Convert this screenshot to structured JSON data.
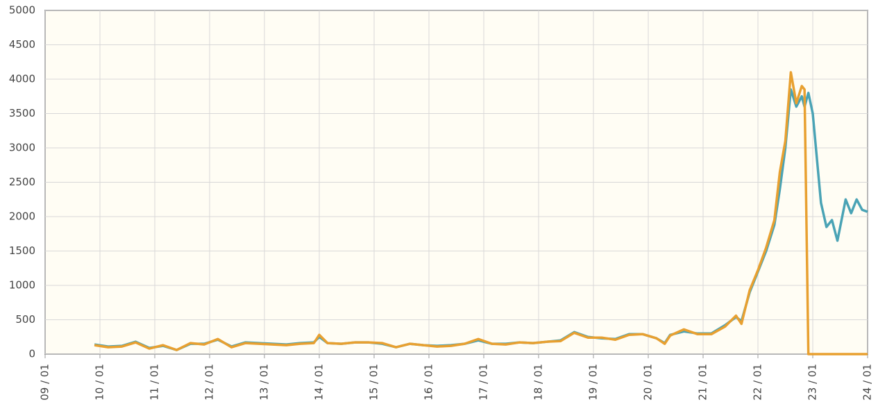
{
  "chart_data": {
    "type": "line",
    "x": [
      2009.9,
      2010.15,
      2010.4,
      2010.65,
      2010.9,
      2011.15,
      2011.4,
      2011.65,
      2011.9,
      2012.15,
      2012.4,
      2012.65,
      2012.9,
      2013.15,
      2013.4,
      2013.65,
      2013.9,
      2014.0,
      2014.15,
      2014.4,
      2014.65,
      2014.9,
      2015.15,
      2015.4,
      2015.65,
      2015.9,
      2016.15,
      2016.4,
      2016.65,
      2016.9,
      2017.15,
      2017.4,
      2017.65,
      2017.9,
      2018.15,
      2018.4,
      2018.65,
      2018.9,
      2019.15,
      2019.4,
      2019.65,
      2019.9,
      2020.15,
      2020.3,
      2020.4,
      2020.65,
      2020.9,
      2021.15,
      2021.4,
      2021.6,
      2021.7,
      2021.85,
      2022.0,
      2022.15,
      2022.3,
      2022.4,
      2022.5,
      2022.6,
      2022.7,
      2022.8,
      2022.85,
      2022.92,
      2023.0,
      2023.15,
      2023.25,
      2023.35,
      2023.45,
      2023.6,
      2023.7,
      2023.8,
      2023.9,
      2024.0
    ],
    "series": [
      {
        "color": "#4aa3b5",
        "values": [
          140,
          110,
          120,
          180,
          90,
          120,
          60,
          150,
          150,
          210,
          110,
          170,
          160,
          150,
          140,
          160,
          170,
          250,
          160,
          150,
          170,
          170,
          150,
          100,
          150,
          130,
          120,
          130,
          150,
          200,
          150,
          150,
          170,
          160,
          180,
          200,
          320,
          250,
          230,
          220,
          290,
          290,
          230,
          160,
          280,
          330,
          300,
          300,
          420,
          540,
          480,
          900,
          1200,
          1500,
          1880,
          2400,
          3000,
          3850,
          3600,
          3750,
          3600,
          3800,
          3500,
          2200,
          1850,
          1950,
          1650,
          2250,
          2050,
          2250,
          2100,
          2070
        ]
      },
      {
        "color": "#e8a030",
        "values": [
          130,
          100,
          110,
          170,
          80,
          130,
          60,
          160,
          140,
          220,
          100,
          160,
          150,
          140,
          130,
          150,
          160,
          280,
          160,
          150,
          170,
          170,
          160,
          100,
          150,
          130,
          110,
          120,
          150,
          220,
          150,
          140,
          170,
          160,
          180,
          190,
          310,
          240,
          240,
          210,
          280,
          290,
          230,
          150,
          270,
          360,
          290,
          290,
          400,
          560,
          440,
          930,
          1220,
          1550,
          1950,
          2650,
          3100,
          4100,
          3650,
          3900,
          3850,
          0,
          0,
          0,
          0,
          0,
          0,
          0,
          0,
          0,
          0,
          0
        ]
      }
    ],
    "xlim": [
      2009,
      2024
    ],
    "ylim": [
      0,
      5000
    ],
    "xticks": [
      {
        "value": 2009,
        "label": "09 / 01"
      },
      {
        "value": 2010,
        "label": "10 / 01"
      },
      {
        "value": 2011,
        "label": "11 / 01"
      },
      {
        "value": 2012,
        "label": "12 / 01"
      },
      {
        "value": 2013,
        "label": "13 / 01"
      },
      {
        "value": 2014,
        "label": "14 / 01"
      },
      {
        "value": 2015,
        "label": "15 / 01"
      },
      {
        "value": 2016,
        "label": "16 / 01"
      },
      {
        "value": 2017,
        "label": "17 / 01"
      },
      {
        "value": 2018,
        "label": "18 / 01"
      },
      {
        "value": 2019,
        "label": "19 / 01"
      },
      {
        "value": 2020,
        "label": "20 / 01"
      },
      {
        "value": 2021,
        "label": "21 / 01"
      },
      {
        "value": 2022,
        "label": "22 / 01"
      },
      {
        "value": 2023,
        "label": "23 / 01"
      },
      {
        "value": 2024,
        "label": "24 / 01"
      }
    ],
    "yticks": [
      0,
      500,
      1000,
      1500,
      2000,
      2500,
      3000,
      3500,
      4000,
      4500,
      5000
    ],
    "grid": true
  }
}
